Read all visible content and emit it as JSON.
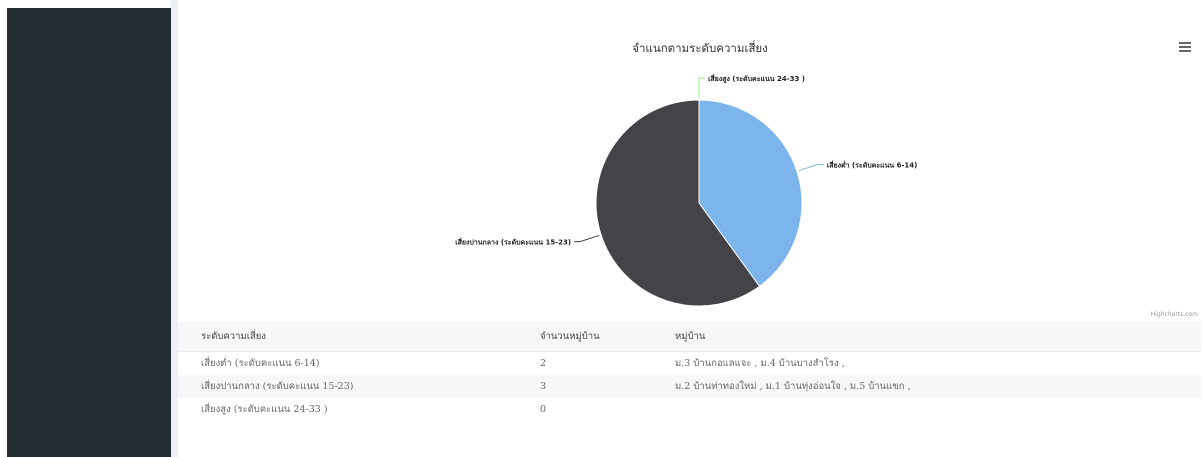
{
  "chart_data": {
    "type": "pie",
    "title": "จำแนกตามระดับความเสี่ยง",
    "series": [
      {
        "name": "",
        "data": [
          {
            "label": "เสี่ยงต่ำ (ระดับคะแนน 6-14)",
            "value": 2
          },
          {
            "label": "เสี่ยงปานกลาง (ระดับคะแนน 15-23)",
            "value": 3
          },
          {
            "label": "เสี่ยงสูง (ระดับคะแนน 24-33 )",
            "value": 0
          }
        ]
      }
    ],
    "colors": [
      "#7cb5ec",
      "#434348",
      "#90ed7d"
    ],
    "legend": "none",
    "credit": "Highcharts.com"
  },
  "table": {
    "headers": [
      "ระดับความเสี่ยง",
      "จำนวนหมู่บ้าน",
      "หมู่บ้าน"
    ],
    "rows": [
      [
        "เสี่ยงต่ำ (ระดับคะแนน 6-14)",
        "2",
        "ม.3 บ้านกอแลแจะ , ม.4 บ้านบางสำโรง ,"
      ],
      [
        "เสี่ยงปานกลาง (ระดับคะแนน 15-23)",
        "3",
        "ม.2 บ้านท่าทองใหม่ , ม.1 บ้านทุ่งอ่อนใจ , ม.5 บ้านแขก ,"
      ],
      [
        "เสี่ยงสูง (ระดับคะแนน 24-33 )",
        "0",
        ""
      ]
    ]
  },
  "icons": {
    "menu": "hamburger-menu-icon"
  }
}
